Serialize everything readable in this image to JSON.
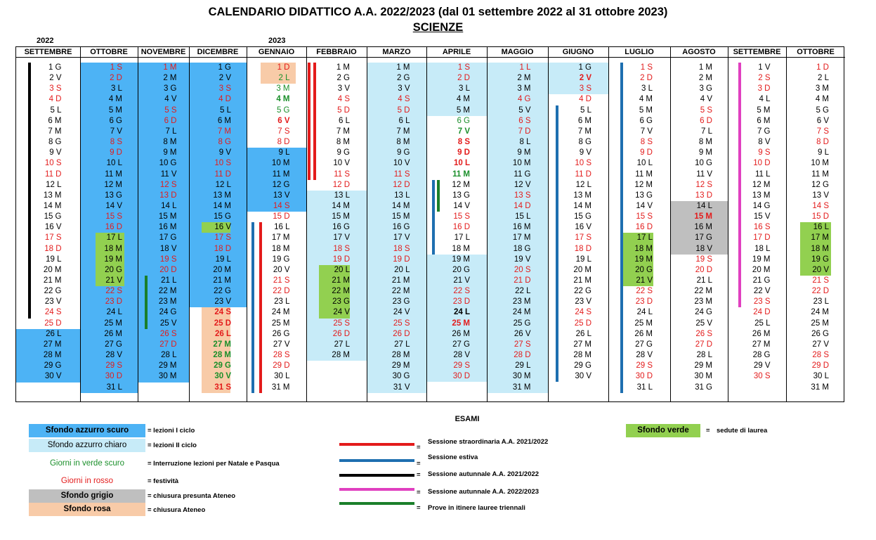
{
  "title": "CALENDARIO DIDATTICO A.A. 2022/2023 (dal 01 settembre 2022 al 31 ottobre 2023)",
  "subtitle": "SCIENZE",
  "year_labels": [
    "2022",
    "2023"
  ],
  "colors": {
    "dark_blue": "#4db3f5",
    "light_blue": "#c7ebf8",
    "green_bg": "#92d050",
    "grey": "#bfbfbf",
    "pink": "#f8cba8",
    "red_text": "#e31b1b",
    "green_text": "#1a8f2a",
    "bar_red": "#e31b1b",
    "bar_blue": "#1e6fb0",
    "bar_black": "#000000",
    "bar_magenta": "#e040c0",
    "bar_green": "#1a7f2a"
  },
  "months": [
    {
      "name": "SETTEMBRE",
      "days": [
        "1 G",
        "2 V",
        "3 S",
        "4 D",
        "5 L",
        "6 M",
        "7 M",
        "8 G",
        "9 V",
        "10 S",
        "11 D",
        "12 L",
        "13 M",
        "14 M",
        "15 G",
        "16 V",
        "17 S",
        "18 D",
        "19 L",
        "20 M",
        "21 M",
        "22 G",
        "23 V",
        "24 S",
        "25 D",
        "26 L",
        "27 M",
        "28 M",
        "29 G",
        "30 V"
      ],
      "red": [
        3,
        4,
        10,
        11,
        17,
        18,
        24,
        25
      ],
      "green": [],
      "bold": []
    },
    {
      "name": "OTTOBRE",
      "days": [
        "1 S",
        "2 D",
        "3 L",
        "4 M",
        "5 M",
        "6 G",
        "7 V",
        "8 S",
        "9 D",
        "10 L",
        "11 M",
        "12 M",
        "13 G",
        "14 V",
        "15 S",
        "16 D",
        "17 L",
        "18 M",
        "19 M",
        "20 G",
        "21 V",
        "22 S",
        "23 D",
        "24 L",
        "25 M",
        "26 M",
        "27 G",
        "28 V",
        "29 S",
        "30 D",
        "31 L"
      ],
      "red": [
        1,
        2,
        8,
        9,
        15,
        16,
        22,
        23,
        29,
        30
      ],
      "green": [],
      "bold": []
    },
    {
      "name": "NOVEMBRE",
      "days": [
        "1 M",
        "2 M",
        "3 G",
        "4 V",
        "5 S",
        "6 D",
        "7 L",
        "8 M",
        "9 M",
        "10 G",
        "11 V",
        "12 S",
        "13 D",
        "14 L",
        "15 M",
        "16 M",
        "17 G",
        "18 V",
        "19 S",
        "20 D",
        "21 L",
        "22 M",
        "23 M",
        "24 G",
        "25 V",
        "26 S",
        "27 D",
        "28 L",
        "29 M",
        "30 M"
      ],
      "red": [
        1,
        5,
        6,
        12,
        13,
        19,
        20,
        26,
        27
      ],
      "green": [],
      "bold": []
    },
    {
      "name": "DICEMBRE",
      "days": [
        "1 G",
        "2 V",
        "3 S",
        "4 D",
        "5 L",
        "6 M",
        "7 M",
        "8 G",
        "9 V",
        "10 S",
        "11 D",
        "12 L",
        "13 M",
        "14 M",
        "15 G",
        "16 V",
        "17 S",
        "18 D",
        "19 L",
        "20 M",
        "21 M",
        "22 G",
        "23 V",
        "24 S",
        "25 D",
        "26 L",
        "27 M",
        "28 M",
        "29 G",
        "30 V",
        "31 S"
      ],
      "red": [
        3,
        4,
        7,
        8,
        10,
        11,
        17,
        18,
        24,
        25,
        26,
        31
      ],
      "green": [
        27,
        28,
        29,
        30
      ],
      "bold": [
        24,
        25,
        26,
        27,
        28,
        29,
        30,
        31
      ]
    },
    {
      "name": "GENNAIO",
      "days": [
        "1 D",
        "2 L",
        "3 M",
        "4 M",
        "5 G",
        "6 V",
        "7 S",
        "8 D",
        "9 L",
        "10 M",
        "11 M",
        "12 G",
        "13 V",
        "14 S",
        "15 D",
        "16 L",
        "17 M",
        "18 M",
        "19 G",
        "20 V",
        "21 S",
        "22 D",
        "23 L",
        "24 M",
        "25 M",
        "26 G",
        "27 V",
        "28 S",
        "29 D",
        "30 L",
        "31 M"
      ],
      "red": [
        1,
        6,
        7,
        8,
        14,
        15,
        21,
        22,
        28,
        29
      ],
      "green": [
        2,
        3,
        4,
        5
      ],
      "bold": [
        4,
        6
      ]
    },
    {
      "name": "FEBBRAIO",
      "days": [
        "1 M",
        "2 G",
        "3 V",
        "4 S",
        "5 D",
        "6 L",
        "7 M",
        "8 M",
        "9 G",
        "10 V",
        "11 S",
        "12 D",
        "13 L",
        "14 M",
        "15 M",
        "16 G",
        "17 V",
        "18 S",
        "19 D",
        "20 L",
        "21 M",
        "22 M",
        "23 G",
        "24 V",
        "25 S",
        "26 D",
        "27 L",
        "28 M"
      ],
      "red": [
        4,
        5,
        11,
        12,
        18,
        19,
        25,
        26
      ],
      "green": [],
      "bold": []
    },
    {
      "name": "MARZO",
      "days": [
        "1 M",
        "2 G",
        "3 V",
        "4 S",
        "5 D",
        "6 L",
        "7 M",
        "8 M",
        "9 G",
        "10 V",
        "11 S",
        "12 D",
        "13 L",
        "14 M",
        "15 M",
        "16 G",
        "17 V",
        "18 S",
        "19 D",
        "20 L",
        "21 M",
        "22 M",
        "23 G",
        "24 V",
        "25 S",
        "26 D",
        "27 L",
        "28 M",
        "29 M",
        "30 G",
        "31 V"
      ],
      "red": [
        4,
        5,
        11,
        12,
        18,
        19,
        25,
        26
      ],
      "green": [],
      "bold": []
    },
    {
      "name": "APRILE",
      "days": [
        "1 S",
        "2 D",
        "3 L",
        "4 M",
        "5 M",
        "6 G",
        "7 V",
        "8 S",
        "9 D",
        "10 L",
        "11 M",
        "12 M",
        "13 G",
        "14 V",
        "15 S",
        "16 D",
        "17 L",
        "18 M",
        "19 M",
        "20 G",
        "21 V",
        "22 S",
        "23 D",
        "24 L",
        "25 M",
        "26 M",
        "27 G",
        "28 V",
        "29 S",
        "30 D"
      ],
      "red": [
        1,
        2,
        8,
        9,
        10,
        15,
        16,
        22,
        23,
        25,
        29,
        30
      ],
      "green": [
        6,
        7,
        11
      ],
      "bold": [
        7,
        8,
        9,
        10,
        11,
        24,
        25
      ]
    },
    {
      "name": "MAGGIO",
      "days": [
        "1 L",
        "2 M",
        "3 M",
        "4 G",
        "5 V",
        "6 S",
        "7 D",
        "8 L",
        "9 M",
        "10 M",
        "11 G",
        "12 V",
        "13 S",
        "14 D",
        "15 L",
        "16 M",
        "17 M",
        "18 G",
        "19 V",
        "20 S",
        "21 D",
        "22 L",
        "23 M",
        "24 M",
        "25 G",
        "26 V",
        "27 S",
        "28 D",
        "29 L",
        "30 M",
        "31 M"
      ],
      "red": [
        1,
        4,
        6,
        7,
        13,
        14,
        20,
        21,
        27,
        28
      ],
      "green": [],
      "bold": []
    },
    {
      "name": "GIUGNO",
      "days": [
        "1 G",
        "2 V",
        "3 S",
        "4 D",
        "5 L",
        "6 M",
        "7 M",
        "8 G",
        "9 V",
        "10 S",
        "11 D",
        "12 L",
        "13 M",
        "14 M",
        "15 G",
        "16 V",
        "17 S",
        "18 D",
        "19 L",
        "20 M",
        "21 M",
        "22 G",
        "23 V",
        "24 S",
        "25 D",
        "26 L",
        "27 M",
        "28 M",
        "29 G",
        "30 V"
      ],
      "red": [
        2,
        3,
        4,
        10,
        11,
        17,
        18,
        24,
        25
      ],
      "green": [],
      "bold": [
        2
      ]
    },
    {
      "name": "LUGLIO",
      "days": [
        "1 S",
        "2 D",
        "3 L",
        "4 M",
        "5 M",
        "6 G",
        "7 V",
        "8 S",
        "9 D",
        "10 L",
        "11 M",
        "12 M",
        "13 G",
        "14 V",
        "15 S",
        "16 D",
        "17 L",
        "18 M",
        "19 M",
        "20 G",
        "21 V",
        "22 S",
        "23 D",
        "24 L",
        "25 M",
        "26 M",
        "27 G",
        "28 V",
        "29 S",
        "30 D",
        "31 L"
      ],
      "red": [
        1,
        2,
        8,
        9,
        15,
        16,
        22,
        23,
        29,
        30
      ],
      "green": [],
      "bold": []
    },
    {
      "name": "AGOSTO",
      "days": [
        "1 M",
        "2 M",
        "3 G",
        "4 V",
        "5 S",
        "6 D",
        "7 L",
        "8 M",
        "9 M",
        "10 G",
        "11 V",
        "12 S",
        "13 D",
        "14 L",
        "15 M",
        "16 M",
        "17 G",
        "18 V",
        "19 S",
        "20 D",
        "21 L",
        "22 M",
        "23 M",
        "24 G",
        "25 V",
        "26 S",
        "27 D",
        "28 L",
        "29 M",
        "30 M",
        "31 G"
      ],
      "red": [
        5,
        6,
        12,
        13,
        15,
        19,
        20,
        26,
        27
      ],
      "green": [],
      "bold": [
        15
      ]
    },
    {
      "name": "SETTEMBRE",
      "days": [
        "1 V",
        "2 S",
        "3 D",
        "4 L",
        "5 M",
        "6 M",
        "7 G",
        "8 V",
        "9 S",
        "10 D",
        "11 L",
        "12 M",
        "13 M",
        "14 G",
        "15 V",
        "16 S",
        "17 D",
        "18 L",
        "19 M",
        "20 M",
        "21 G",
        "22 V",
        "23 S",
        "24 D",
        "25 L",
        "26 M",
        "27 M",
        "28 G",
        "29 V",
        "30 S"
      ],
      "red": [
        2,
        3,
        9,
        10,
        16,
        17,
        23,
        24,
        30
      ],
      "green": [],
      "bold": []
    },
    {
      "name": "OTTOBRE",
      "days": [
        "1 D",
        "2 L",
        "3 M",
        "4 M",
        "5 G",
        "6 V",
        "7 S",
        "8 D",
        "9 L",
        "10 M",
        "11 M",
        "12 G",
        "13 V",
        "14 S",
        "15 D",
        "16 L",
        "17 M",
        "18 M",
        "19 G",
        "20 V",
        "21 S",
        "22 D",
        "23 L",
        "24 M",
        "25 M",
        "26 G",
        "27 V",
        "28 S",
        "29 D",
        "30 L",
        "31 M"
      ],
      "red": [
        1,
        7,
        8,
        14,
        15,
        21,
        22,
        28,
        29
      ],
      "green": [],
      "bold": []
    }
  ],
  "legend": {
    "items": [
      {
        "box": "Sfondo azzurro scuro",
        "label": "= lezioni I ciclo",
        "style": "dark_blue"
      },
      {
        "box": "Sfondo azzurro chiaro",
        "label": "= lezioni II ciclo",
        "style": "light_blue"
      },
      {
        "box": "Giorni in verde scuro",
        "label": "= Interruzione lezioni per Natale e Pasqua",
        "style": "green_text"
      },
      {
        "box": "Giorni in rosso",
        "label": "= festività",
        "style": "red_text"
      },
      {
        "box": "Sfondo grigio",
        "label": "= chiusura presunta Ateneo",
        "style": "grey"
      },
      {
        "box": "Sfondo rosa",
        "label": "= chiusura  Ateneo",
        "style": "pink"
      }
    ],
    "exams_title": "ESAMI",
    "sessions": [
      {
        "label": "Sessione straordinaria A.A. 2021/2022",
        "color": "bar_red"
      },
      {
        "label": "Sessione estiva",
        "color": "bar_blue"
      },
      {
        "label": "Sessione autunnale A.A. 2021/2022",
        "color": "bar_black"
      },
      {
        "label": "Sessione autunnale A.A. 2022/2023",
        "color": "bar_magenta"
      },
      {
        "label": "Prove in itinere lauree triennali",
        "color": "bar_green"
      }
    ],
    "eq_sign": "=",
    "green_box": "Sfondo verde",
    "green_label": "sedute di laurea"
  }
}
